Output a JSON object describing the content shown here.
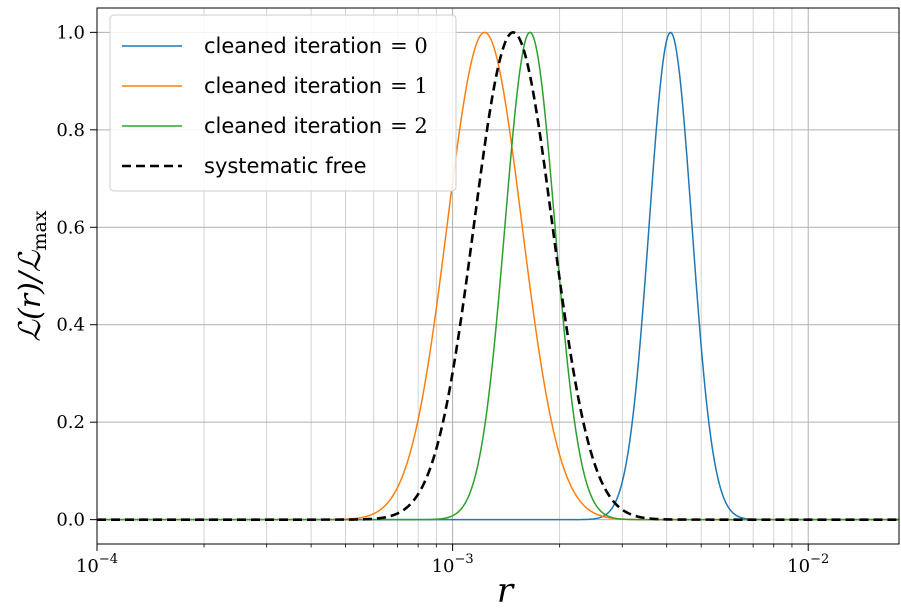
{
  "chart_data": {
    "type": "line",
    "title": "",
    "xlabel": "r",
    "ylabel": "ℒ(r)/ℒmax",
    "ylabel_main": "ℒ(r)/ℒ",
    "ylabel_sub": "max",
    "xscale": "log",
    "xlim": [
      0.0001,
      0.018
    ],
    "ylim": [
      -0.05,
      1.05
    ],
    "grid": true,
    "legend_position": "top-left",
    "x_ticks": [
      {
        "value": 0.0001,
        "base": "10",
        "exp": "−4"
      },
      {
        "value": 0.001,
        "base": "10",
        "exp": "−3"
      },
      {
        "value": 0.01,
        "base": "10",
        "exp": "−2"
      }
    ],
    "y_ticks": [
      {
        "value": 0.0,
        "label": "0.0"
      },
      {
        "value": 0.2,
        "label": "0.2"
      },
      {
        "value": 0.4,
        "label": "0.4"
      },
      {
        "value": 0.6,
        "label": "0.6"
      },
      {
        "value": 0.8,
        "label": "0.8"
      },
      {
        "value": 1.0,
        "label": "1.0"
      }
    ],
    "series": [
      {
        "name": "cleaned iteration = 0",
        "label_text": "cleaned iteration",
        "label_math": "= 0",
        "color": "#1f77b4",
        "style": "solid",
        "peak": 0.0041,
        "sigma_log10": 0.06,
        "x": [
          0.00316,
          0.0035,
          0.0037,
          0.0039,
          0.0041,
          0.0043,
          0.0045,
          0.0048,
          0.0053
        ],
        "y": [
          0.03,
          0.24,
          0.5,
          0.85,
          1.0,
          0.86,
          0.52,
          0.15,
          0.01
        ]
      },
      {
        "name": "cleaned iteration = 1",
        "label_text": "cleaned iteration",
        "label_math": "= 1",
        "color": "#ff7f0e",
        "style": "solid",
        "peak": 0.00123,
        "sigma_log10": 0.105,
        "x": [
          0.0005,
          0.0007,
          0.0009,
          0.00105,
          0.00123,
          0.00145,
          0.0017,
          0.002,
          0.0025
        ],
        "y": [
          0.01,
          0.12,
          0.57,
          0.86,
          1.0,
          0.84,
          0.44,
          0.12,
          0.01
        ]
      },
      {
        "name": "cleaned iteration = 2",
        "label_text": "cleaned iteration",
        "label_math": "= 2",
        "color": "#2ca02c",
        "style": "solid",
        "peak": 0.00165,
        "sigma_log10": 0.07,
        "x": [
          0.00105,
          0.0012,
          0.0014,
          0.00155,
          0.00165,
          0.0018,
          0.002,
          0.0023,
          0.0026
        ],
        "y": [
          0.02,
          0.12,
          0.57,
          0.89,
          1.0,
          0.88,
          0.5,
          0.13,
          0.02
        ]
      },
      {
        "name": "systematic free",
        "label_text": "systematic free",
        "label_math": "",
        "color": "#000000",
        "style": "dashed",
        "peak": 0.00148,
        "sigma_log10": 0.11,
        "x": [
          0.0006,
          0.0008,
          0.001,
          0.0012,
          0.00148,
          0.0018,
          0.0022,
          0.0026,
          0.0032
        ],
        "y": [
          0.02,
          0.12,
          0.38,
          0.7,
          1.0,
          0.78,
          0.38,
          0.12,
          0.01
        ]
      }
    ]
  }
}
